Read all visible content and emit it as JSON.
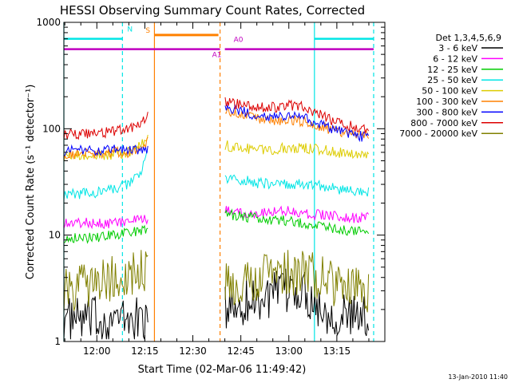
{
  "chart_data": {
    "type": "line",
    "title": "HESSI Observing Summary Count Rates, Corrected",
    "xlabel": "Start Time (02-Mar-06 11:49:42)",
    "ylabel": "Corrected Count Rate (s⁻¹ detector⁻¹)",
    "yscale": "log",
    "ylim": [
      1,
      1000
    ],
    "xlim": [
      "11:49:42",
      "13:30:00"
    ],
    "x_ticks": [
      "12:00",
      "12:15",
      "12:30",
      "12:45",
      "13:00",
      "13:15"
    ],
    "y_ticks": [
      "1",
      "10",
      "100",
      "1000"
    ],
    "grid": false,
    "legend_position": "right",
    "legend_header": "Det 1,3,4,5,6,9",
    "footer_date": "13-Jan-2010 11:40",
    "annotations": [
      {
        "label": "N",
        "color": "#00e5e5",
        "value": 700
      },
      {
        "label": "S",
        "color": "#ff8000",
        "value": 760
      },
      {
        "label": "A0",
        "color": "#c000c0",
        "value": 560
      },
      {
        "label": "A1",
        "color": "#c000c0",
        "value": 560
      }
    ],
    "event_lines": [
      {
        "time": "11:49:42",
        "style": "solid",
        "color": "#00e5e5"
      },
      {
        "time": "12:08:00",
        "style": "dashed",
        "color": "#00e5e5"
      },
      {
        "time": "12:18:00",
        "style": "solid",
        "color": "#ff8000"
      },
      {
        "time": "12:38:30",
        "style": "dashed",
        "color": "#ff8000"
      },
      {
        "time": "13:08:00",
        "style": "solid",
        "color": "#00e5e5"
      },
      {
        "time": "13:26:30",
        "style": "dashed",
        "color": "#00e5e5"
      }
    ],
    "series": [
      {
        "name": "3 - 6 keV",
        "color": "#000000",
        "x": [
          "11:49:42",
          "12:00",
          "12:05",
          "12:10",
          "12:16",
          "12:40",
          "12:45",
          "12:50",
          "12:55",
          "13:00",
          "13:05",
          "13:10",
          "13:15",
          "13:20",
          "13:25"
        ],
        "y": [
          1.6,
          1.6,
          1.6,
          1.6,
          1.6,
          2.0,
          2.3,
          2.5,
          2.7,
          3.0,
          3.0,
          2.0,
          1.8,
          1.7,
          1.6
        ]
      },
      {
        "name": "6 - 12 keV",
        "color": "#ff00ff",
        "x": [
          "11:49:42",
          "12:00",
          "12:05",
          "12:10",
          "12:16",
          "12:40",
          "12:45",
          "12:50",
          "12:55",
          "13:00",
          "13:05",
          "13:10",
          "13:15",
          "13:20",
          "13:25"
        ],
        "y": [
          13,
          13,
          13,
          13.5,
          14,
          17,
          16.5,
          16,
          17,
          17,
          16,
          15.5,
          15,
          14.5,
          14.5
        ]
      },
      {
        "name": "12 - 25 keV",
        "color": "#00cc00",
        "x": [
          "11:49:42",
          "12:00",
          "12:05",
          "12:10",
          "12:16",
          "12:40",
          "12:45",
          "12:50",
          "12:55",
          "13:00",
          "13:05",
          "13:10",
          "13:15",
          "13:20",
          "13:25"
        ],
        "y": [
          9.5,
          9.5,
          10,
          10.5,
          11.5,
          16,
          15,
          14.5,
          14,
          13.5,
          13,
          12,
          11.5,
          11,
          10.5
        ]
      },
      {
        "name": "25 - 50 keV",
        "color": "#00e5e5",
        "x": [
          "11:49:42",
          "12:00",
          "12:05",
          "12:10",
          "12:14",
          "12:16",
          "12:40",
          "12:45",
          "12:50",
          "12:55",
          "13:00",
          "13:05",
          "13:10",
          "13:15",
          "13:20",
          "13:25"
        ],
        "y": [
          24,
          25,
          27,
          30,
          40,
          60,
          34,
          33,
          31,
          30,
          30,
          30,
          29,
          27,
          26,
          25
        ]
      },
      {
        "name": "50 - 100 keV",
        "color": "#ddcc00",
        "x": [
          "11:49:42",
          "12:00",
          "12:05",
          "12:10",
          "12:14",
          "12:16",
          "12:40",
          "12:45",
          "12:50",
          "12:55",
          "13:00",
          "13:05",
          "13:10",
          "13:15",
          "13:20",
          "13:25"
        ],
        "y": [
          55,
          55,
          57,
          60,
          70,
          85,
          70,
          66,
          64,
          64,
          66,
          66,
          64,
          60,
          58,
          57
        ]
      },
      {
        "name": "100 - 300 keV",
        "color": "#ff8000",
        "x": [
          "11:49:42",
          "12:00",
          "12:05",
          "12:10",
          "12:14",
          "12:16",
          "12:40",
          "12:45",
          "12:50",
          "12:55",
          "13:00",
          "13:05",
          "13:10",
          "13:15",
          "13:20",
          "13:25"
        ],
        "y": [
          58,
          58,
          60,
          60,
          65,
          80,
          145,
          135,
          125,
          118,
          120,
          118,
          105,
          95,
          90,
          88
        ]
      },
      {
        "name": "300 - 800 keV",
        "color": "#0000ff",
        "x": [
          "11:49:42",
          "12:00",
          "12:05",
          "12:10",
          "12:14",
          "12:16",
          "12:40",
          "12:45",
          "12:50",
          "12:55",
          "13:00",
          "13:05",
          "13:10",
          "13:15",
          "13:20",
          "13:25"
        ],
        "y": [
          62,
          62,
          63,
          64,
          64,
          65,
          160,
          145,
          135,
          128,
          130,
          128,
          110,
          95,
          88,
          82
        ]
      },
      {
        "name": "800 - 7000 keV",
        "color": "#dd0000",
        "x": [
          "11:49:42",
          "12:00",
          "12:05",
          "12:10",
          "12:14",
          "12:16",
          "12:40",
          "12:45",
          "12:50",
          "12:55",
          "13:00",
          "13:05",
          "13:10",
          "13:15",
          "13:20",
          "13:25"
        ],
        "y": [
          88,
          90,
          95,
          100,
          110,
          135,
          180,
          168,
          160,
          158,
          165,
          160,
          135,
          115,
          105,
          100
        ]
      },
      {
        "name": "7000 - 20000 keV",
        "color": "#808000",
        "x": [
          "11:49:42",
          "12:00",
          "12:05",
          "12:10",
          "12:16",
          "12:40",
          "12:45",
          "12:50",
          "12:55",
          "13:00",
          "13:05",
          "13:10",
          "13:15",
          "13:20",
          "13:25"
        ],
        "y": [
          3.0,
          3.6,
          4.0,
          4.4,
          4.5,
          3.4,
          3.8,
          4.0,
          4.2,
          4.4,
          4.4,
          4.0,
          3.2,
          3.0,
          3.0
        ]
      }
    ]
  }
}
